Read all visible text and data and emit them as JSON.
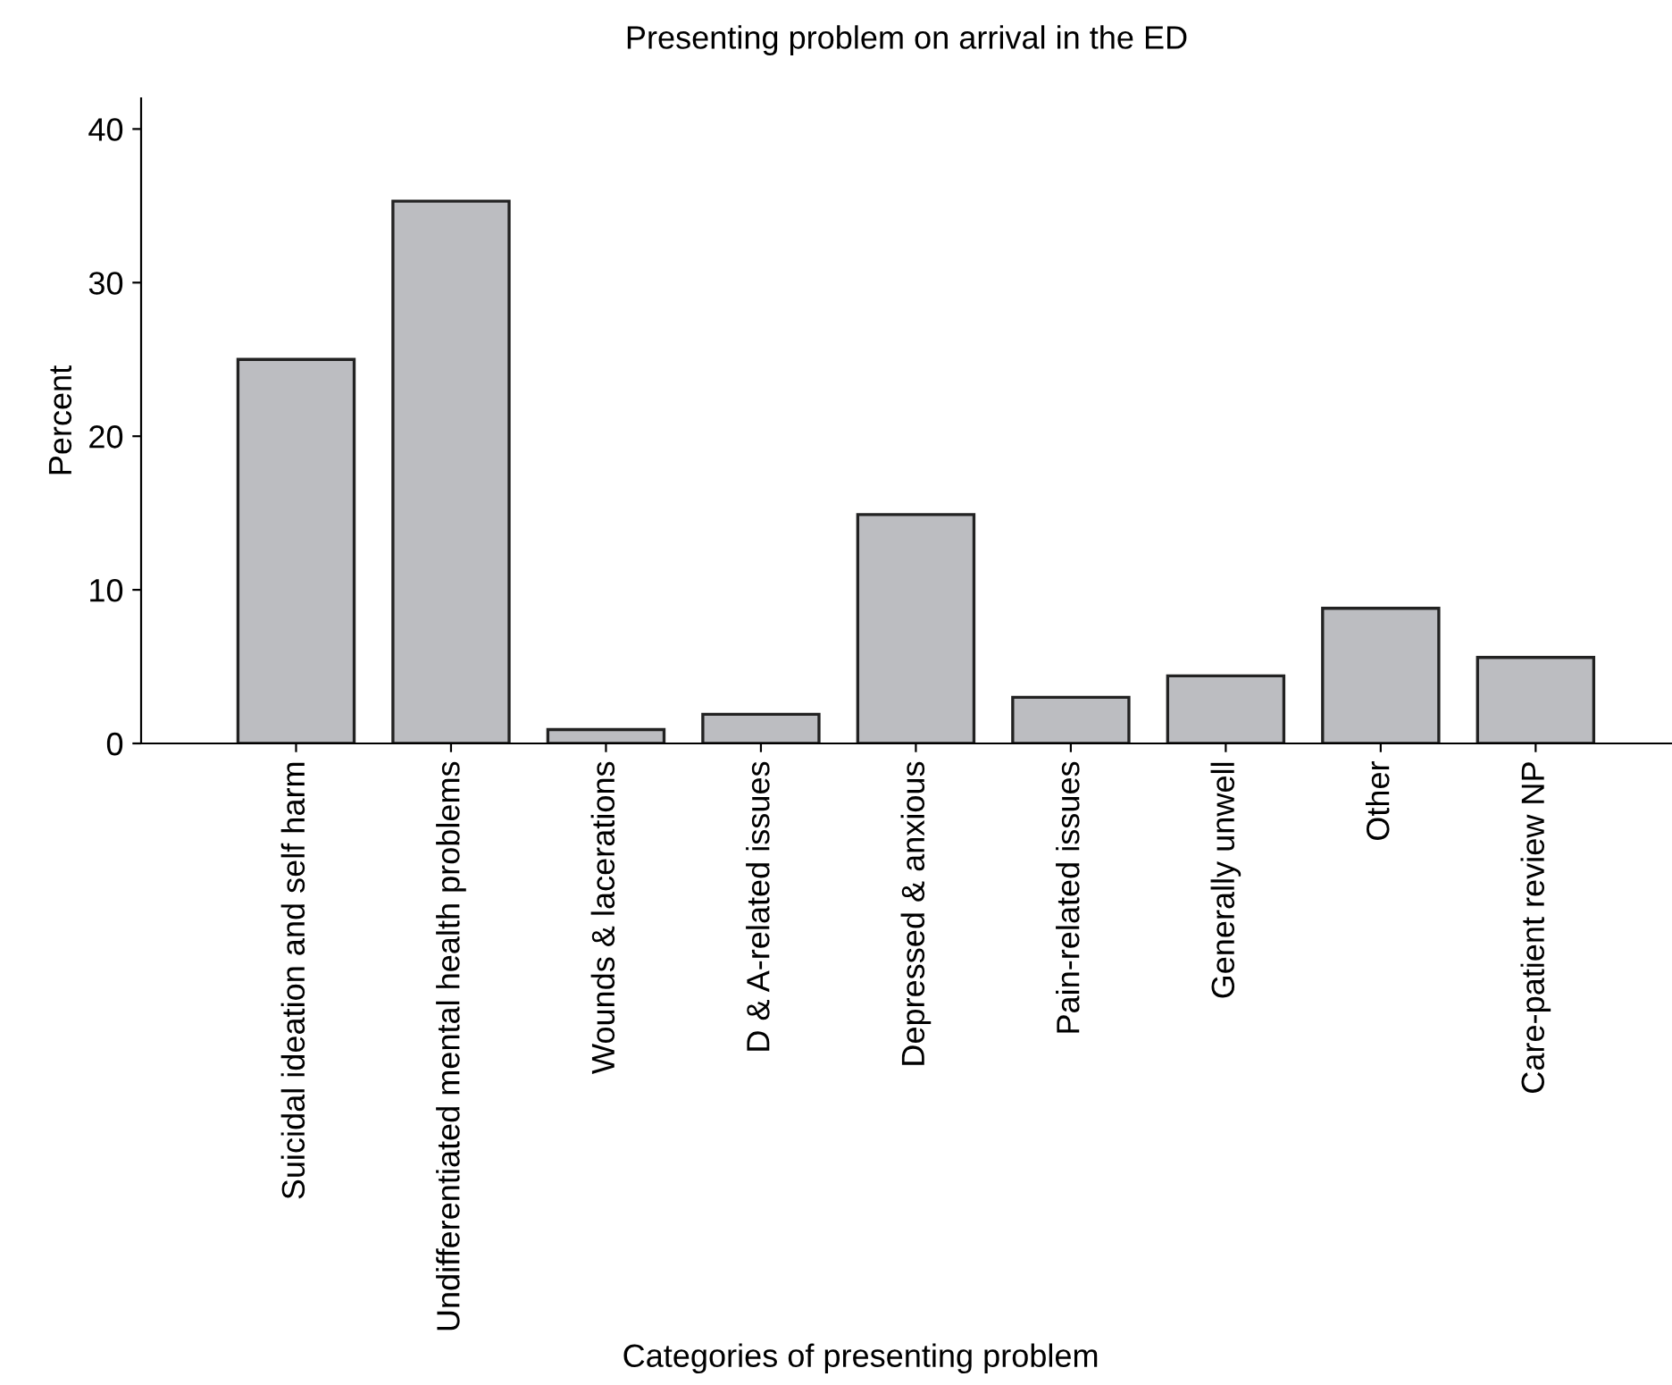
{
  "chart_data": {
    "type": "bar",
    "title": "Presenting problem on arrival in the ED",
    "xlabel": "Categories of presenting problem",
    "ylabel": "Percent",
    "categories": [
      "Suicidal ideation and self harm",
      "Undifferentiated mental health problems",
      "Wounds & lacerations",
      "D & A-related issues",
      "Depressed & anxious",
      "Pain-related issues",
      "Generally unwell",
      "Other",
      "Care-patient review NP"
    ],
    "values": [
      25.0,
      35.3,
      0.9,
      1.9,
      14.9,
      3.0,
      4.4,
      8.8,
      5.6
    ],
    "color": "#bcbdc1",
    "ylim": [
      0,
      42
    ],
    "yticks": [
      0,
      10,
      20,
      30,
      40
    ],
    "grid": false
  }
}
